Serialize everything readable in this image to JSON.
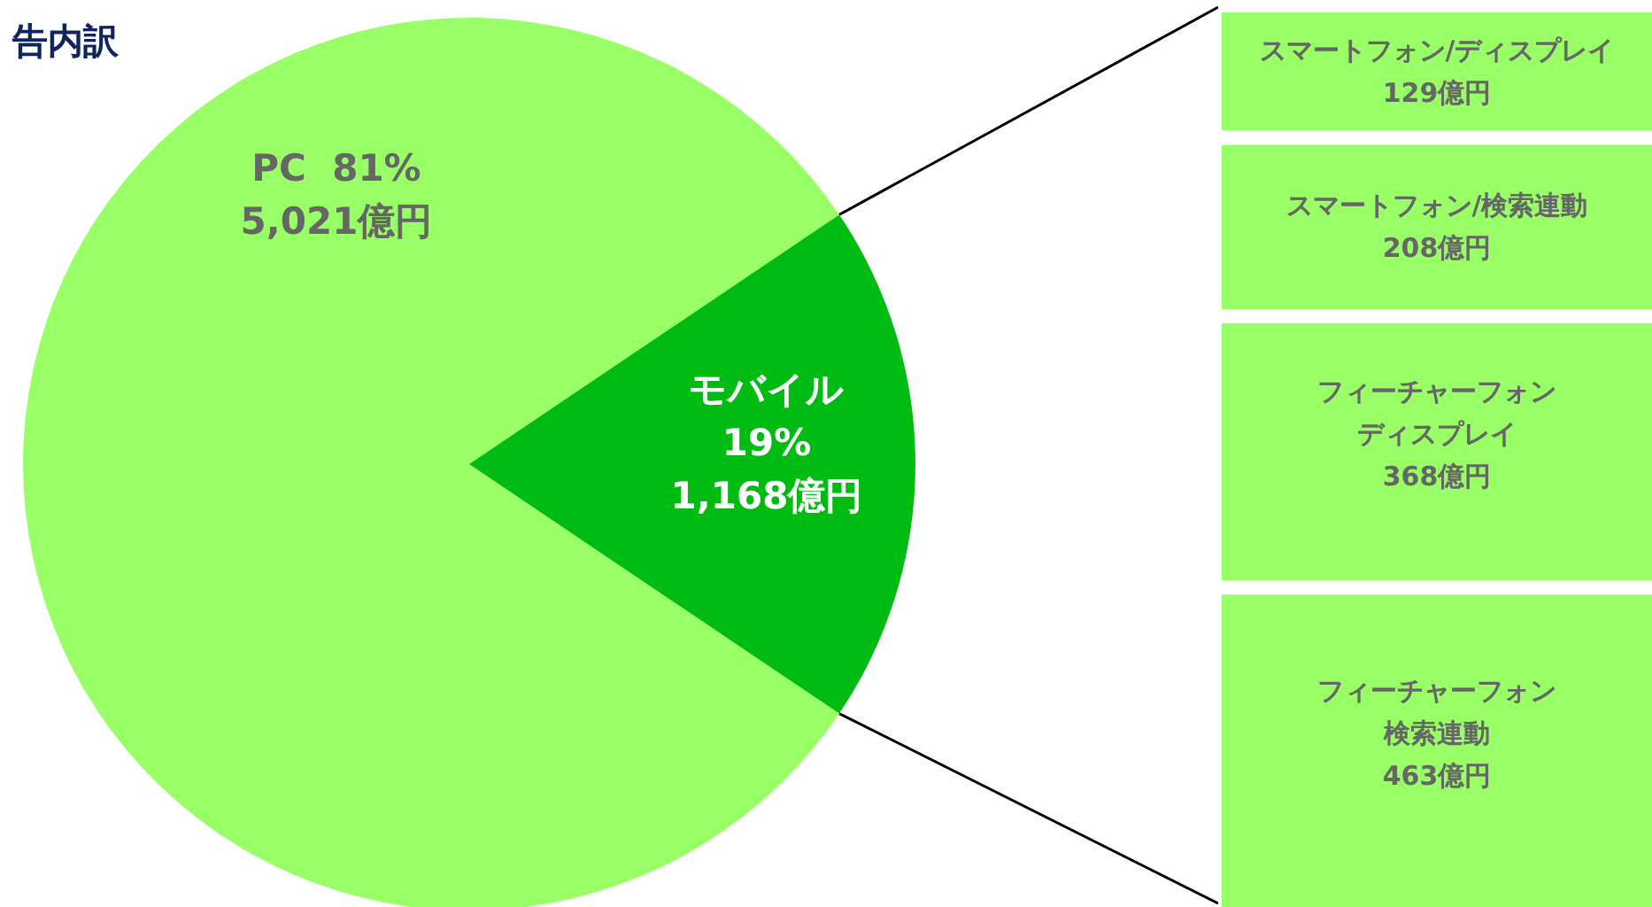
{
  "chart_data": [
    {
      "type": "pie",
      "title": "告内訳",
      "categories": [
        "PC",
        "モバイル"
      ],
      "values": [
        5021,
        1168
      ],
      "value_labels": [
        "81%\n5,021億円",
        "19%\n1,168億円"
      ],
      "colors": [
        "#99ff66",
        "#00bb11"
      ]
    },
    {
      "type": "other",
      "categories": [
        "スマートフォン/ディスプレイ",
        "スマートフォン/検索連動",
        "フィーチャーフォンディスプレイ",
        "フィーチャーフォン検索連動"
      ],
      "values": [
        129,
        208,
        368,
        463
      ],
      "value_labels": [
        "129億円",
        "208億円",
        "368億円",
        "463億円"
      ],
      "colors": [
        "#99ff66",
        "#99ff66",
        "#99ff66",
        "#99ff66"
      ]
    }
  ]
}
